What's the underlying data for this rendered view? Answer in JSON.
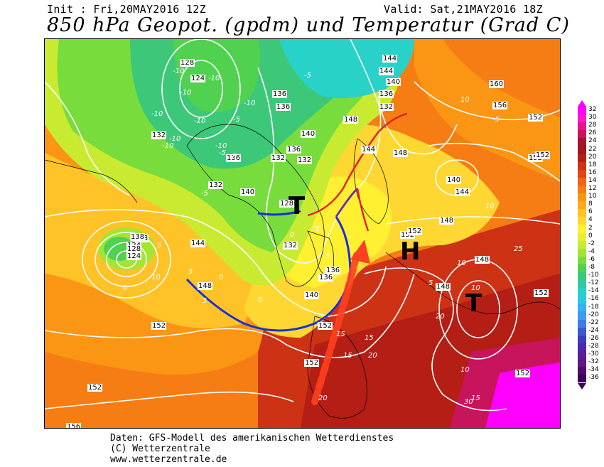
{
  "header": {
    "init": "Init : Fri,20MAY2016 12Z",
    "valid": "Valid: Sat,21MAY2016 18Z",
    "title": "850 hPa Geopot. (gpdm) und Temperatur (Grad C)"
  },
  "pressure_symbols": {
    "low_north": "T",
    "high_central": "H",
    "low_southeast": "T"
  },
  "geopotential_labels": [
    "128",
    "124",
    "136",
    "132",
    "136",
    "140",
    "136",
    "132",
    "132",
    "128",
    "144",
    "148",
    "144",
    "140",
    "136",
    "132",
    "144",
    "148",
    "152",
    "140",
    "144",
    "148",
    "152",
    "160",
    "156",
    "152",
    "148",
    "152",
    "152",
    "148",
    "152",
    "152",
    "152",
    "152",
    "152",
    "156",
    "128",
    "124",
    "138",
    "128",
    "124",
    "144",
    "148",
    "152",
    "132",
    "136",
    "140",
    "140",
    "136",
    "132",
    "136"
  ],
  "temperature_labels": [
    "-10",
    "-10",
    "-10",
    "-10",
    "-10",
    "-10",
    "-10",
    "-10",
    "-10",
    "-5",
    "-5",
    "-5",
    "-5",
    "-5",
    "0",
    "0",
    "0",
    "5",
    "5",
    "5",
    "5",
    "5",
    "10",
    "10",
    "10",
    "10",
    "10",
    "15",
    "15",
    "15",
    "15",
    "20",
    "20",
    "20",
    "25",
    "30",
    "10",
    "5",
    "0",
    "-5"
  ],
  "legend": {
    "values": [
      "32",
      "30",
      "28",
      "26",
      "24",
      "22",
      "20",
      "18",
      "16",
      "14",
      "12",
      "10",
      "8",
      "6",
      "4",
      "2",
      "0",
      "-2",
      "-4",
      "-6",
      "-8",
      "-10",
      "-12",
      "-14",
      "-16",
      "-18",
      "-20",
      "-22",
      "-24",
      "-26",
      "-28",
      "-30",
      "-32",
      "-34",
      "-36"
    ],
    "colors": [
      "#ff00ff",
      "#ff1ac6",
      "#e6148c",
      "#c8145a",
      "#a01432",
      "#a0141e",
      "#b41e14",
      "#cd3214",
      "#e14614",
      "#f06414",
      "#f57d14",
      "#fa9614",
      "#ffaa1e",
      "#ffc328",
      "#ffd732",
      "#fff032",
      "#e6f032",
      "#c8eb32",
      "#a0e632",
      "#78dc3c",
      "#50d250",
      "#3cc878",
      "#32c8a0",
      "#28d2c8",
      "#28c8e6",
      "#32b4f0",
      "#3c9bf0",
      "#3c7de6",
      "#3c5ad2",
      "#3c3cbe",
      "#5028aa",
      "#5a1e96",
      "#641482",
      "#500a6e",
      "#3c005a"
    ]
  },
  "footer": {
    "line1": "Daten: GFS-Modell des amerikanischen Wetterdienstes",
    "line2": "(C) Wetterzentrale",
    "line3": "www.wetterzentrale.de"
  }
}
